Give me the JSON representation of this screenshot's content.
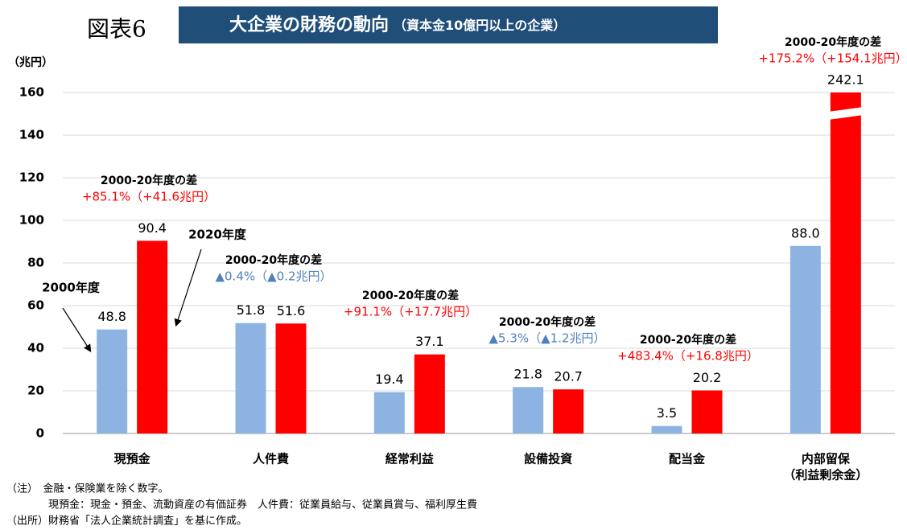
{
  "chart_data": {
    "type": "bar",
    "figure_label": "図表6",
    "title": "大企業の財務の動向",
    "subtitle": "（資本金10億円以上の企業）",
    "y_axis_label": "（兆円）",
    "categories": [
      "現預金",
      "人件費",
      "経常利益",
      "設備投資",
      "配当金",
      [
        "内部留保",
        "（利益剰余金）"
      ]
    ],
    "series": [
      {
        "name": "2000年度",
        "color": "#8db3e2",
        "values": [
          48.8,
          51.8,
          19.4,
          21.8,
          3.5,
          88.0
        ],
        "value_labels": [
          "48.8",
          "51.8",
          "19.4",
          "21.8",
          "3.5",
          "88.0"
        ]
      },
      {
        "name": "2020年度",
        "color": "#ff0000",
        "values": [
          90.4,
          51.6,
          37.1,
          20.7,
          20.2,
          242.1
        ]
      }
    ],
    "ylim": [
      0,
      160
    ],
    "yticks": [
      0,
      20,
      40,
      60,
      80,
      100,
      120,
      140,
      160
    ],
    "grid": true,
    "axis_break": true,
    "annotations": [
      {
        "title": "2000-20年度の差",
        "text": "+85.1%（+41.6兆円）",
        "color": "#ff0000"
      },
      {
        "title": "2000-20年度の差",
        "text": "▲0.4%（▲0.2兆円）",
        "color": "#4f81bd"
      },
      {
        "title": "2000-20年度の差",
        "text": "+91.1%（+17.7兆円）",
        "color": "#ff0000"
      },
      {
        "title": "2000-20年度の差",
        "text": "▲5.3%（▲1.2兆円）",
        "color": "#4f81bd"
      },
      {
        "title": "2000-20年度の差",
        "text": "+483.4%（+16.8兆円）",
        "color": "#ff0000"
      },
      {
        "title": "2000-20年度の差",
        "text": "+175.2%（+154.1兆円）",
        "color": "#ff0000"
      }
    ],
    "notes": [
      "（注）　金融・保険業を除く数字。",
      "　　　　現預金：現金・預金、流動資産の有価証券　人件費：従業員給与、従業員賞与、福利厚生費",
      "（出所）財務省「法人企業統計調査」を基に作成。"
    ]
  }
}
